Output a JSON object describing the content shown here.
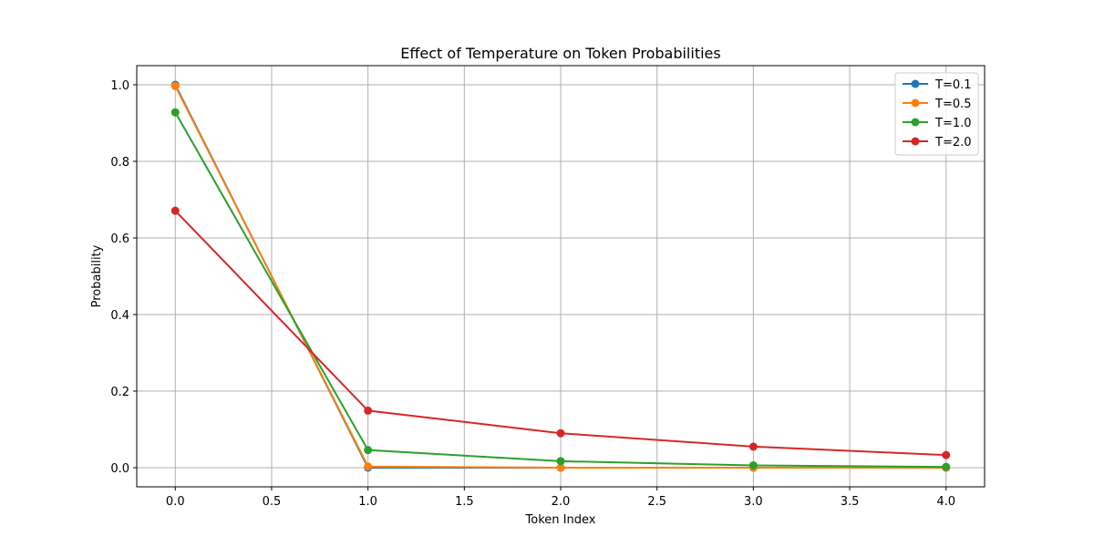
{
  "chart_data": {
    "type": "line",
    "title": "Effect of Temperature on Token Probabilities",
    "xlabel": "Token Index",
    "ylabel": "Probability",
    "xlim": [
      -0.2,
      4.2
    ],
    "ylim": [
      -0.05,
      1.05
    ],
    "x_ticks": [
      0.0,
      0.5,
      1.0,
      1.5,
      2.0,
      2.5,
      3.0,
      3.5,
      4.0
    ],
    "x_tick_labels": [
      "0.0",
      "0.5",
      "1.0",
      "1.5",
      "2.0",
      "2.5",
      "3.0",
      "3.5",
      "4.0"
    ],
    "y_ticks": [
      0.0,
      0.2,
      0.4,
      0.6,
      0.8,
      1.0
    ],
    "y_tick_labels": [
      "0.0",
      "0.2",
      "0.4",
      "0.6",
      "0.8",
      "1.0"
    ],
    "grid": true,
    "legend_position": "top-right",
    "x": [
      0,
      1,
      2,
      3,
      4
    ],
    "series": [
      {
        "name": "T=0.1",
        "color": "#1f77b4",
        "values": [
          1.0,
          0.0,
          0.0,
          0.0,
          0.0
        ]
      },
      {
        "name": "T=0.5",
        "color": "#ff7f0e",
        "values": [
          0.997,
          0.003,
          0.0,
          0.0,
          0.0
        ]
      },
      {
        "name": "T=1.0",
        "color": "#2ca02c",
        "values": [
          0.928,
          0.046,
          0.017,
          0.006,
          0.002
        ]
      },
      {
        "name": "T=2.0",
        "color": "#d62728",
        "values": [
          0.671,
          0.149,
          0.09,
          0.055,
          0.033
        ]
      }
    ]
  }
}
